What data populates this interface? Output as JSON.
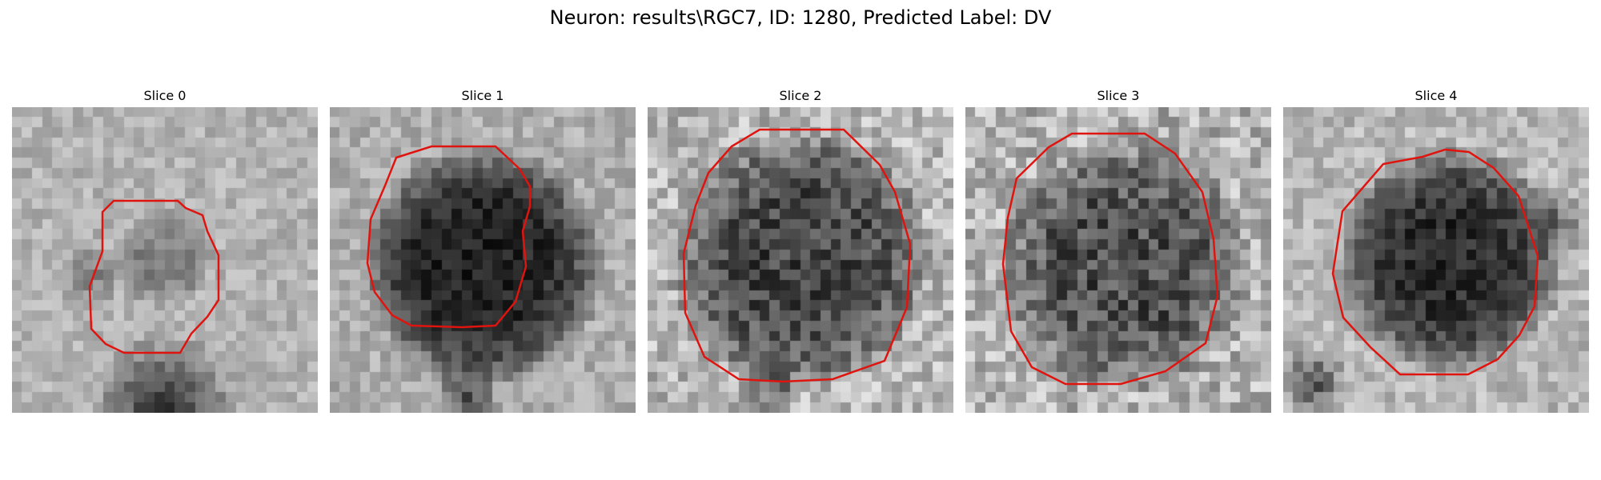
{
  "figure": {
    "title": "Neuron: results\\RGC7, ID: 1280, Predicted Label: DV"
  },
  "colors": {
    "outline": "#e0140f",
    "background": "#ffffff",
    "colormap": "grayscale"
  },
  "slices": [
    {
      "label": "Slice 0"
    },
    {
      "label": "Slice 1"
    },
    {
      "label": "Slice 2"
    },
    {
      "label": "Slice 3"
    },
    {
      "label": "Slice 4"
    }
  ]
}
